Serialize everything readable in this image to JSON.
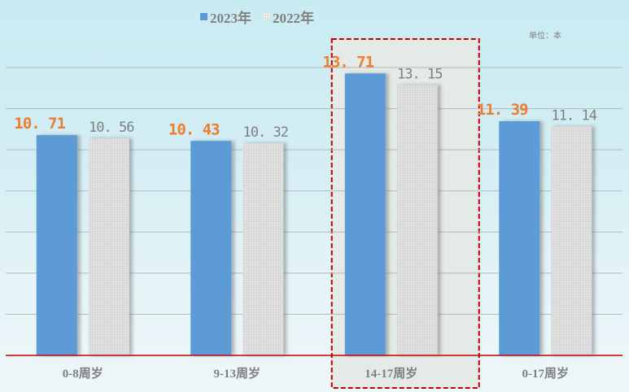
{
  "chart_data": {
    "type": "bar",
    "title": "",
    "unit_label": "单位：本",
    "categories": [
      "0-8周岁",
      "9-13周岁",
      "14-17周岁",
      "0-17周岁"
    ],
    "series": [
      {
        "name": "2023年",
        "values": [
          10.71,
          10.43,
          13.71,
          11.39
        ],
        "color": "#5b9bd5",
        "label_color": "#ed7d31"
      },
      {
        "name": "2022年",
        "values": [
          10.56,
          10.32,
          13.15,
          11.14
        ],
        "color": "#d9d9d9",
        "label_color": "#7f7f7f"
      }
    ],
    "ylim": [
      0,
      14
    ],
    "grid": true,
    "y_tick_step": 2,
    "y_ticks_shown": false,
    "legend": "top-center",
    "highlighted_category": "14-17周岁",
    "highlight_color": "#c00000",
    "baseline_color": "#c00000"
  }
}
